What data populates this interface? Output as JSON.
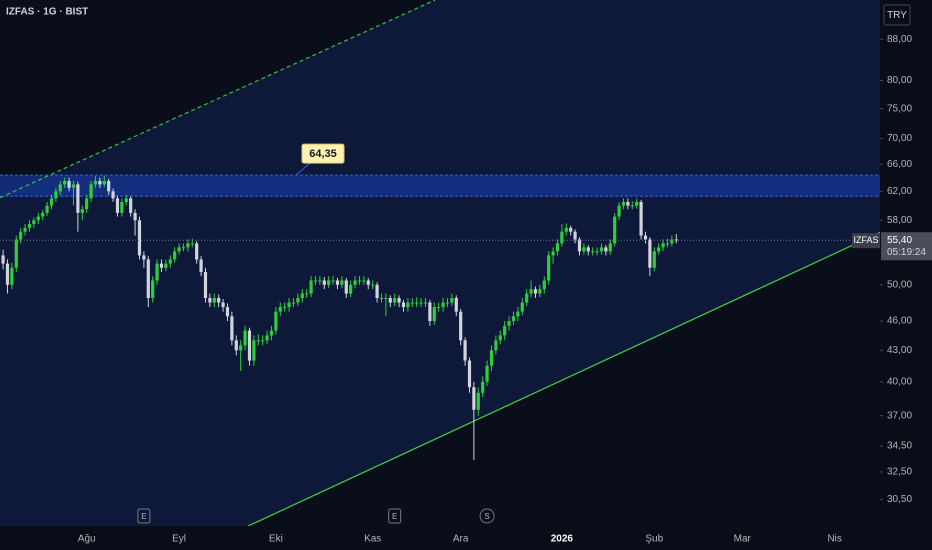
{
  "chart_data": {
    "type": "candlestick",
    "title": "IZFAS · 1G · BIST",
    "currency": "TRY",
    "symbol_label": "IZFAS",
    "last_label": "55,40",
    "countdown": "05:19:24",
    "up_color": "#2fcf3c",
    "down_color": "#d1d4dc",
    "log": true,
    "grid": false,
    "ylim": [
      28.7,
      96.3
    ],
    "xlim": [
      -0.7,
      199.3
    ],
    "yticks": [
      {
        "value": 88,
        "label": "88,00"
      },
      {
        "value": 80,
        "label": "80,00"
      },
      {
        "value": 75,
        "label": "75,00"
      },
      {
        "value": 70,
        "label": "70,00"
      },
      {
        "value": 66,
        "label": "66,00"
      },
      {
        "value": 62,
        "label": "62,00"
      },
      {
        "value": 58,
        "label": "58,00"
      },
      {
        "value": 50,
        "label": "50,00"
      },
      {
        "value": 46,
        "label": "46,00"
      },
      {
        "value": 43,
        "label": "43,00"
      },
      {
        "value": 40,
        "label": "40,00"
      },
      {
        "value": 37,
        "label": "37,00"
      },
      {
        "value": 34.5,
        "label": "34,50"
      },
      {
        "value": 32.5,
        "label": "32,50"
      },
      {
        "value": 30.5,
        "label": "30,50"
      }
    ],
    "xticks": [
      {
        "value": 19,
        "label": "Ağu"
      },
      {
        "value": 40,
        "label": "Eyl"
      },
      {
        "value": 62,
        "label": "Eki"
      },
      {
        "value": 84,
        "label": "Kas"
      },
      {
        "value": 104,
        "label": "Ara"
      },
      {
        "value": 127,
        "label": "2026"
      },
      {
        "value": 148,
        "label": "Şub"
      },
      {
        "value": 168,
        "label": "Mar"
      },
      {
        "value": 189,
        "label": "Nis"
      }
    ],
    "zone": {
      "low": 61.3,
      "high": 64.35,
      "label": "64,35"
    },
    "trendlines": [
      {
        "x": [
          -0.7,
          98.2
        ],
        "y": [
          61.1,
          96.3
        ],
        "color": "#35c13f",
        "dash": true
      },
      {
        "x": [
          55.7,
          199.3
        ],
        "y": [
          28.7,
          56.4
        ],
        "color": "#3fd13f",
        "dash": false
      }
    ],
    "events": [
      {
        "x": 32,
        "label": "E"
      },
      {
        "x": 89,
        "label": "E"
      },
      {
        "x": 110,
        "label": "S"
      }
    ],
    "ohlc": [
      [
        53.5,
        54.2,
        51.8,
        52.5
      ],
      [
        52.5,
        53.0,
        49.0,
        50.0
      ],
      [
        50.0,
        52.6,
        49.5,
        52.0
      ],
      [
        52.0,
        56.0,
        51.5,
        55.5
      ],
      [
        55.5,
        57.0,
        55.0,
        56.5
      ],
      [
        56.5,
        57.5,
        56.0,
        57.0
      ],
      [
        57.0,
        58.0,
        56.5,
        57.5
      ],
      [
        57.5,
        58.4,
        57.0,
        58.0
      ],
      [
        58.0,
        59.0,
        57.5,
        58.5
      ],
      [
        58.5,
        59.4,
        58.0,
        59.0
      ],
      [
        59.0,
        60.5,
        58.6,
        60.0
      ],
      [
        60.0,
        61.5,
        59.5,
        61.0
      ],
      [
        61.0,
        62.5,
        60.5,
        62.0
      ],
      [
        62.0,
        63.5,
        61.5,
        63.0
      ],
      [
        63.0,
        64.0,
        62.5,
        63.5
      ],
      [
        63.5,
        64.0,
        62.0,
        62.5
      ],
      [
        62.5,
        63.5,
        60.0,
        63.0
      ],
      [
        63.0,
        63.4,
        56.5,
        59.0
      ],
      [
        59.0,
        60.0,
        58.0,
        59.5
      ],
      [
        59.5,
        61.5,
        59.0,
        61.0
      ],
      [
        61.0,
        63.5,
        60.5,
        63.0
      ],
      [
        63.0,
        64.2,
        62.5,
        63.5
      ],
      [
        63.5,
        64.0,
        62.5,
        63.0
      ],
      [
        63.0,
        64.3,
        62.6,
        63.5
      ],
      [
        63.5,
        63.8,
        61.5,
        62.0
      ],
      [
        62.0,
        62.4,
        60.5,
        61.0
      ],
      [
        61.0,
        61.4,
        58.5,
        59.0
      ],
      [
        59.0,
        61.0,
        58.5,
        60.5
      ],
      [
        60.5,
        61.5,
        60.0,
        61.0
      ],
      [
        61.0,
        61.3,
        58.5,
        59.0
      ],
      [
        59.0,
        59.5,
        56.0,
        58.0
      ],
      [
        58.0,
        58.5,
        53.0,
        53.5
      ],
      [
        53.5,
        54.0,
        52.0,
        53.0
      ],
      [
        53.0,
        53.4,
        47.5,
        48.5
      ],
      [
        48.5,
        51.0,
        48.0,
        50.5
      ],
      [
        50.5,
        53.0,
        50.0,
        52.5
      ],
      [
        52.5,
        53.0,
        51.5,
        52.0
      ],
      [
        52.0,
        53.0,
        51.6,
        52.5
      ],
      [
        52.5,
        53.5,
        52.0,
        53.0
      ],
      [
        53.0,
        54.5,
        52.6,
        54.0
      ],
      [
        54.0,
        55.0,
        53.6,
        54.5
      ],
      [
        54.5,
        55.0,
        54.0,
        54.5
      ],
      [
        54.5,
        55.5,
        54.0,
        55.0
      ],
      [
        55.0,
        55.6,
        54.5,
        55.0
      ],
      [
        55.0,
        55.3,
        52.5,
        53.0
      ],
      [
        53.0,
        53.4,
        51.0,
        51.5
      ],
      [
        51.5,
        52.0,
        48.0,
        48.5
      ],
      [
        48.5,
        49.0,
        47.5,
        48.0
      ],
      [
        48.0,
        49.0,
        47.5,
        48.5
      ],
      [
        48.5,
        48.9,
        47.5,
        48.0
      ],
      [
        48.0,
        48.4,
        47.0,
        47.5
      ],
      [
        47.5,
        47.9,
        46.0,
        46.5
      ],
      [
        46.5,
        47.0,
        43.5,
        44.0
      ],
      [
        44.0,
        44.5,
        42.5,
        43.0
      ],
      [
        43.0,
        44.0,
        41.0,
        43.5
      ],
      [
        43.5,
        45.5,
        43.0,
        45.0
      ],
      [
        45.0,
        45.3,
        41.5,
        42.0
      ],
      [
        42.0,
        44.5,
        41.5,
        44.0
      ],
      [
        44.0,
        44.6,
        43.5,
        44.0
      ],
      [
        44.0,
        44.5,
        43.5,
        44.0
      ],
      [
        44.0,
        45.0,
        43.6,
        44.5
      ],
      [
        44.5,
        45.5,
        44.0,
        45.0
      ],
      [
        45.0,
        47.5,
        44.6,
        47.0
      ],
      [
        47.0,
        48.0,
        46.5,
        47.5
      ],
      [
        47.5,
        48.0,
        47.0,
        47.5
      ],
      [
        47.5,
        48.5,
        47.0,
        48.0
      ],
      [
        48.0,
        48.5,
        47.5,
        48.0
      ],
      [
        48.0,
        49.0,
        47.6,
        48.5
      ],
      [
        48.5,
        49.5,
        48.0,
        49.0
      ],
      [
        49.0,
        49.5,
        48.5,
        49.0
      ],
      [
        49.0,
        51.0,
        48.6,
        50.5
      ],
      [
        50.5,
        51.0,
        50.0,
        50.5
      ],
      [
        50.5,
        51.0,
        50.0,
        50.5
      ],
      [
        50.5,
        50.9,
        49.5,
        50.0
      ],
      [
        50.0,
        51.0,
        49.6,
        50.5
      ],
      [
        50.5,
        51.0,
        50.0,
        50.5
      ],
      [
        50.5,
        50.8,
        49.5,
        50.0
      ],
      [
        50.0,
        51.0,
        49.6,
        50.5
      ],
      [
        50.5,
        50.8,
        48.5,
        49.0
      ],
      [
        49.0,
        50.5,
        48.6,
        50.0
      ],
      [
        50.0,
        51.0,
        49.6,
        50.5
      ],
      [
        50.5,
        51.0,
        50.0,
        50.5
      ],
      [
        50.5,
        51.0,
        50.0,
        50.5
      ],
      [
        50.5,
        50.8,
        49.5,
        50.0
      ],
      [
        50.0,
        50.5,
        49.5,
        50.0
      ],
      [
        50.0,
        50.3,
        48.0,
        48.5
      ],
      [
        48.5,
        49.0,
        48.0,
        48.5
      ],
      [
        48.5,
        49.0,
        46.5,
        48.5
      ],
      [
        48.5,
        48.8,
        47.5,
        48.0
      ],
      [
        48.0,
        49.0,
        47.6,
        48.5
      ],
      [
        48.5,
        48.8,
        47.5,
        48.0
      ],
      [
        48.0,
        48.3,
        47.0,
        47.5
      ],
      [
        47.5,
        48.5,
        47.0,
        48.0
      ],
      [
        48.0,
        48.5,
        47.5,
        48.0
      ],
      [
        48.0,
        48.6,
        47.5,
        48.0
      ],
      [
        48.0,
        48.5,
        47.5,
        48.0
      ],
      [
        48.0,
        48.5,
        47.5,
        48.0
      ],
      [
        48.0,
        48.3,
        45.5,
        46.0
      ],
      [
        46.0,
        48.0,
        45.6,
        47.5
      ],
      [
        47.5,
        48.0,
        47.0,
        47.5
      ],
      [
        47.5,
        48.5,
        47.0,
        48.0
      ],
      [
        48.0,
        48.5,
        47.5,
        48.0
      ],
      [
        48.0,
        49.0,
        47.6,
        48.5
      ],
      [
        48.5,
        48.8,
        46.5,
        47.0
      ],
      [
        47.0,
        47.3,
        43.5,
        44.0
      ],
      [
        44.0,
        44.3,
        41.5,
        42.0
      ],
      [
        42.0,
        42.3,
        39.0,
        39.5
      ],
      [
        39.5,
        40.0,
        33.4,
        37.5
      ],
      [
        37.5,
        39.5,
        37.0,
        39.0
      ],
      [
        39.0,
        40.5,
        38.6,
        40.0
      ],
      [
        40.0,
        42.0,
        39.6,
        41.5
      ],
      [
        41.5,
        43.5,
        41.0,
        43.0
      ],
      [
        43.0,
        44.5,
        42.6,
        44.0
      ],
      [
        44.0,
        45.0,
        43.6,
        44.5
      ],
      [
        44.5,
        46.0,
        44.0,
        45.5
      ],
      [
        45.5,
        46.5,
        45.0,
        46.0
      ],
      [
        46.0,
        47.0,
        45.6,
        46.5
      ],
      [
        46.5,
        47.5,
        46.0,
        47.0
      ],
      [
        47.0,
        48.5,
        46.6,
        48.0
      ],
      [
        48.0,
        49.5,
        47.6,
        49.0
      ],
      [
        49.0,
        50.5,
        48.6,
        49.5
      ],
      [
        49.5,
        49.8,
        48.5,
        49.0
      ],
      [
        49.0,
        50.0,
        48.6,
        49.5
      ],
      [
        49.5,
        51.0,
        49.0,
        50.5
      ],
      [
        50.5,
        54.0,
        50.0,
        53.5
      ],
      [
        53.5,
        54.5,
        52.5,
        54.0
      ],
      [
        54.0,
        55.5,
        53.5,
        55.0
      ],
      [
        55.0,
        57.5,
        54.6,
        56.5
      ],
      [
        56.5,
        57.6,
        56.0,
        57.0
      ],
      [
        57.0,
        57.3,
        56.0,
        56.5
      ],
      [
        56.5,
        56.8,
        55.0,
        55.5
      ],
      [
        55.5,
        55.8,
        53.5,
        54.0
      ],
      [
        54.0,
        55.0,
        53.6,
        54.5
      ],
      [
        54.5,
        54.8,
        53.5,
        54.0
      ],
      [
        54.0,
        54.5,
        53.5,
        54.0
      ],
      [
        54.0,
        54.5,
        53.5,
        54.0
      ],
      [
        54.0,
        55.0,
        53.6,
        54.5
      ],
      [
        54.5,
        54.8,
        53.5,
        54.0
      ],
      [
        54.0,
        55.5,
        53.6,
        55.0
      ],
      [
        55.0,
        59.0,
        54.6,
        58.5
      ],
      [
        58.5,
        60.5,
        58.0,
        60.0
      ],
      [
        60.0,
        61.0,
        59.5,
        60.5
      ],
      [
        60.5,
        61.0,
        59.5,
        60.0
      ],
      [
        60.0,
        60.6,
        59.5,
        60.0
      ],
      [
        60.0,
        61.0,
        59.6,
        60.5
      ],
      [
        60.5,
        60.8,
        55.5,
        56.0
      ],
      [
        56.0,
        56.5,
        55.0,
        55.5
      ],
      [
        55.5,
        55.8,
        51.0,
        52.0
      ],
      [
        52.0,
        54.5,
        51.6,
        54.0
      ],
      [
        54.0,
        55.0,
        53.6,
        54.5
      ],
      [
        54.5,
        55.5,
        54.0,
        55.0
      ],
      [
        55.0,
        55.6,
        54.5,
        55.0
      ],
      [
        55.0,
        56.0,
        54.6,
        55.5
      ],
      [
        55.5,
        56.2,
        55.0,
        55.4
      ]
    ]
  }
}
